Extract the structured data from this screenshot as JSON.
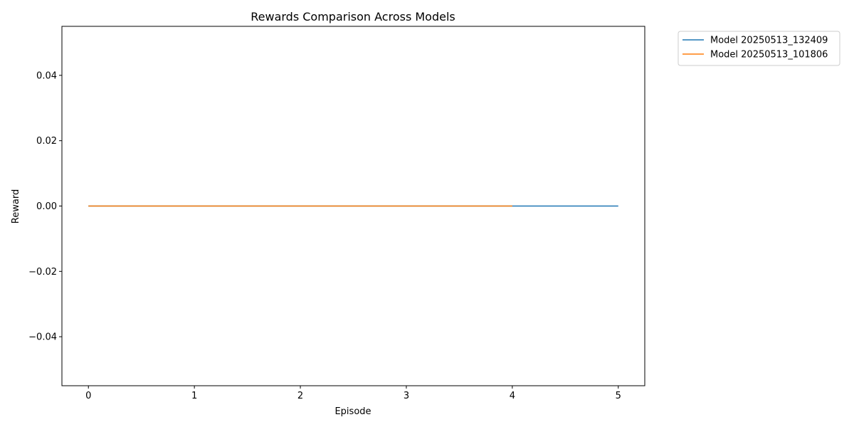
{
  "chart_data": {
    "type": "line",
    "title": "Rewards Comparison Across Models",
    "xlabel": "Episode",
    "ylabel": "Reward",
    "xlim": [
      -0.25,
      5.25
    ],
    "ylim": [
      -0.055,
      0.055
    ],
    "xticks": [
      0,
      1,
      2,
      3,
      4,
      5
    ],
    "xtick_labels": [
      "0",
      "1",
      "2",
      "3",
      "4",
      "5"
    ],
    "yticks": [
      -0.04,
      -0.02,
      0.0,
      0.02,
      0.04
    ],
    "ytick_labels": [
      "−0.04",
      "−0.02",
      "0.00",
      "0.02",
      "0.04"
    ],
    "grid": false,
    "legend_position": "outside-top-right",
    "series": [
      {
        "name": "Model 20250513_132409",
        "color": "#1f77b4",
        "x": [
          0,
          1,
          2,
          3,
          4,
          5
        ],
        "y": [
          0,
          0,
          0,
          0,
          0,
          0
        ]
      },
      {
        "name": "Model 20250513_101806",
        "color": "#ff7f0e",
        "x": [
          0,
          1,
          2,
          3,
          4
        ],
        "y": [
          0,
          0,
          0,
          0,
          0
        ]
      }
    ]
  }
}
